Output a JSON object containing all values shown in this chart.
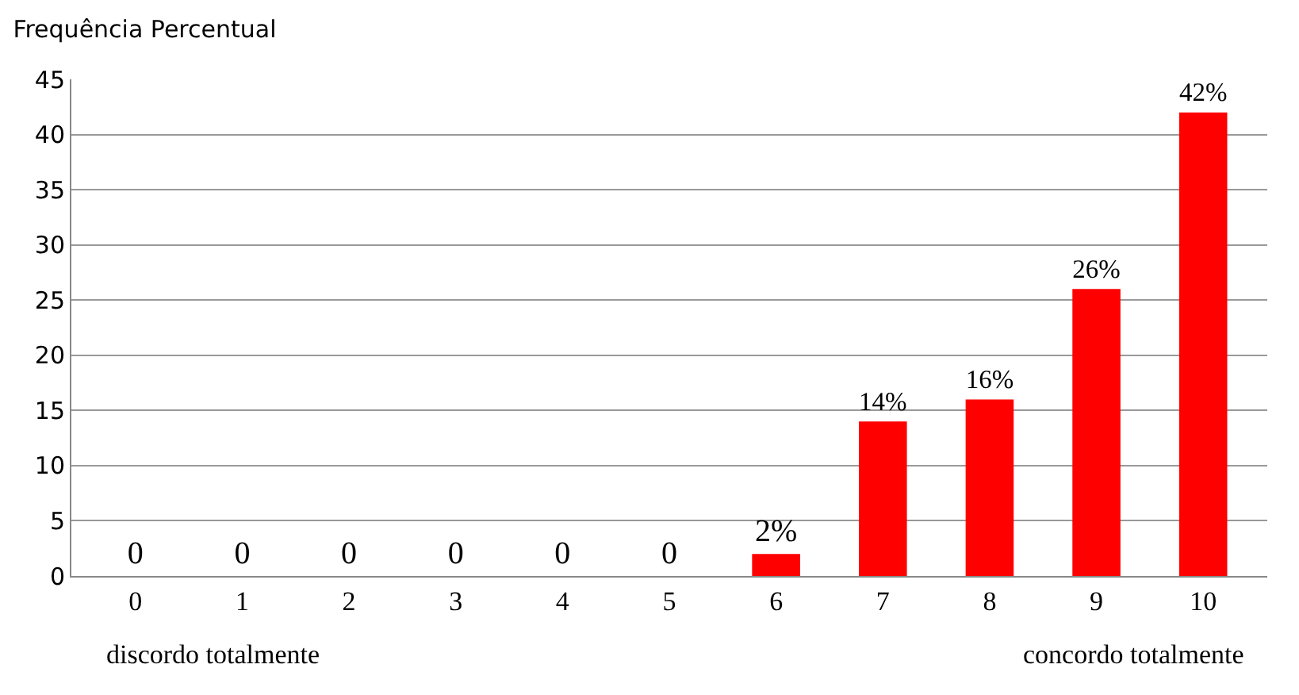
{
  "chart_data": {
    "type": "bar",
    "title": "Frequência Percentual",
    "categories": [
      "0",
      "1",
      "2",
      "3",
      "4",
      "5",
      "6",
      "7",
      "8",
      "9",
      "10"
    ],
    "values": [
      0,
      0,
      0,
      0,
      0,
      0,
      2,
      14,
      16,
      26,
      42
    ],
    "value_labels": [
      "0",
      "0",
      "0",
      "0",
      "0",
      "0",
      "2%",
      "14%",
      "16%",
      "26%",
      "42%"
    ],
    "color": "#ff0000",
    "ylim": [
      0,
      45
    ],
    "yticks": [
      0,
      5,
      10,
      15,
      20,
      25,
      30,
      35,
      40,
      45
    ],
    "grid": "y",
    "annotations": [
      "discordo totalmente",
      "concordo totalmente"
    ]
  }
}
